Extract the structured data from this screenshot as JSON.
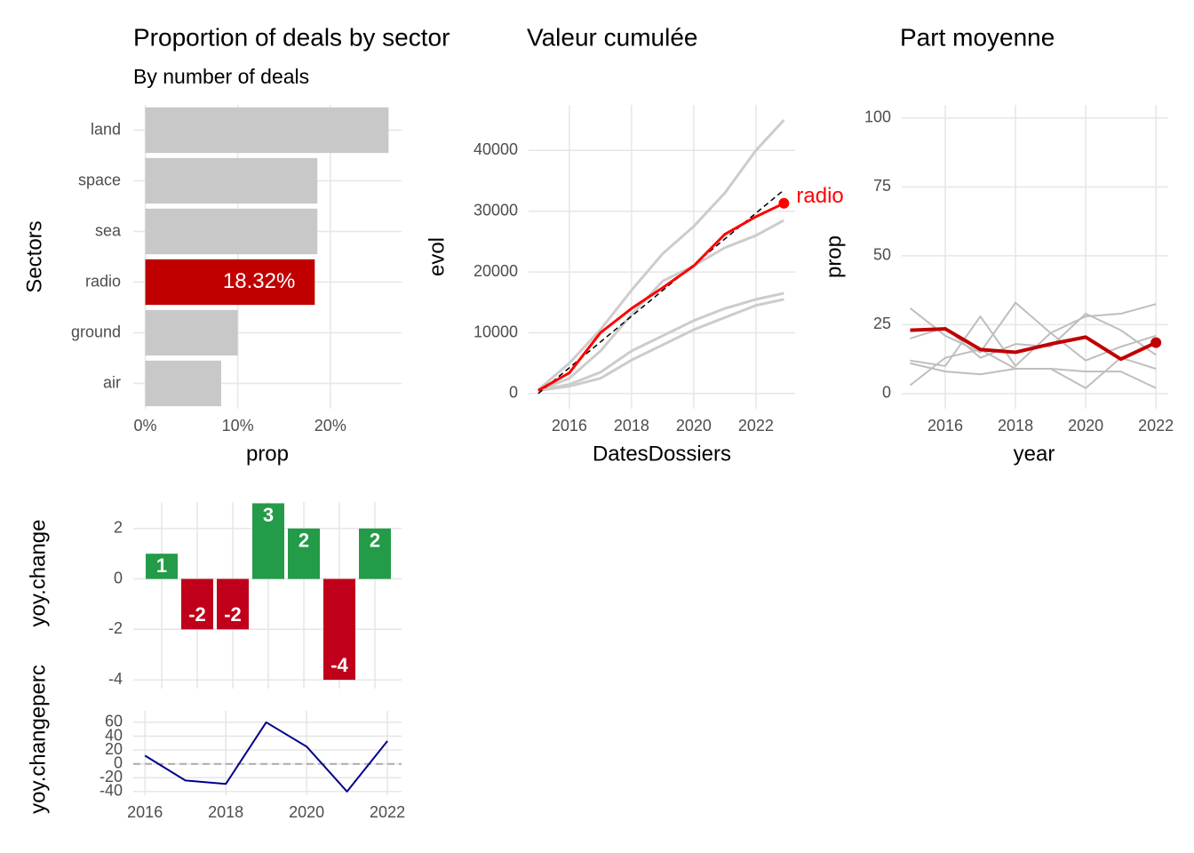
{
  "chart_data": [
    {
      "type": "hbar",
      "title": "Proportion of deals by sector",
      "subtitle": "By number of deals",
      "xlabel": "prop",
      "ylabel": "Sectors",
      "categories": [
        "land",
        "space",
        "sea",
        "radio",
        "ground",
        "air"
      ],
      "values": [
        26.3,
        18.6,
        18.6,
        18.32,
        10.0,
        8.2
      ],
      "value_labels": [
        null,
        null,
        null,
        "18.32%",
        null,
        null
      ],
      "colors": [
        "#c8c8c8",
        "#c8c8c8",
        "#c8c8c8",
        "#c00000",
        "#c8c8c8",
        "#c8c8c8"
      ],
      "xlim": [
        -1.3,
        27.7
      ],
      "xticks": [
        {
          "value": 0,
          "label": "0%"
        },
        {
          "value": 10,
          "label": "10%"
        },
        {
          "value": 20,
          "label": "20%"
        }
      ],
      "grid": true
    },
    {
      "type": "line",
      "title": "Valeur cumulée",
      "xlabel": "DatesDossiers",
      "ylabel": "evol",
      "x": [
        2015,
        2016,
        2017,
        2018,
        2019,
        2020,
        2021,
        2022,
        2022.9
      ],
      "series": [
        {
          "color": "#cccccc",
          "width": 3,
          "values": [
            600,
            5000,
            10500,
            17000,
            23000,
            27500,
            33000,
            40000,
            45000
          ]
        },
        {
          "color": "#cccccc",
          "width": 3,
          "values": [
            500,
            2500,
            7000,
            13000,
            18500,
            21000,
            24000,
            26000,
            28500
          ]
        },
        {
          "color": "#cccccc",
          "width": 3,
          "values": [
            500,
            1500,
            3500,
            7000,
            9500,
            12000,
            14000,
            15500,
            16500
          ]
        },
        {
          "color": "#cccccc",
          "width": 3,
          "values": [
            500,
            1200,
            2500,
            5500,
            8000,
            10500,
            12500,
            14500,
            15500
          ]
        },
        {
          "color": "#000000",
          "width": 1.5,
          "dashed": true,
          "values": [
            0,
            4240,
            8480,
            12720,
            16960,
            21200,
            25440,
            29680,
            33500
          ]
        },
        {
          "name": "radio",
          "color": "#ff0000",
          "width": 3,
          "end_marker": true,
          "end_label": true,
          "values": [
            500,
            3400,
            10000,
            14000,
            17400,
            21000,
            26200,
            29100,
            31300
          ]
        }
      ],
      "xlim": [
        2014.69,
        2023.26
      ],
      "ylim": [
        -2500,
        47500
      ],
      "xticks": [
        2016,
        2018,
        2020,
        2022
      ],
      "yticks": [
        0,
        10000,
        20000,
        30000,
        40000
      ],
      "grid": true
    },
    {
      "type": "line",
      "title": "Part moyenne",
      "xlabel": "year",
      "ylabel": "prop",
      "x": [
        2015,
        2016,
        2017,
        2018,
        2019,
        2020,
        2021,
        2022
      ],
      "series": [
        {
          "color": "#bebebe",
          "width": 2,
          "values": [
            31,
            21,
            15,
            33,
            22,
            28,
            29,
            32.5
          ]
        },
        {
          "color": "#bebebe",
          "width": 2,
          "values": [
            20,
            24,
            13,
            18,
            17,
            29,
            23,
            14
          ]
        },
        {
          "color": "#bebebe",
          "width": 2,
          "values": [
            12,
            10,
            28,
            10,
            22,
            12,
            17,
            21
          ]
        },
        {
          "color": "#bebebe",
          "width": 2,
          "values": [
            11,
            8,
            7,
            9,
            9,
            2,
            13,
            9
          ]
        },
        {
          "color": "#bebebe",
          "width": 2,
          "values": [
            3,
            13,
            16,
            9,
            9,
            8,
            8,
            2
          ]
        },
        {
          "color": "#c00000",
          "width": 4,
          "end_marker": true,
          "values": [
            23,
            23.5,
            16,
            15,
            18,
            20.5,
            12.5,
            18.5
          ]
        }
      ],
      "xlim": [
        2014.76,
        2022.35
      ],
      "ylim": [
        -5.5,
        104.8
      ],
      "xticks": [
        2016,
        2018,
        2020,
        2022
      ],
      "yticks": [
        0,
        25,
        50,
        75,
        100
      ],
      "grid": true
    },
    {
      "type": "bar",
      "ylabel": "yoy.change",
      "x": [
        2016,
        2017,
        2018,
        2019,
        2020,
        2021,
        2022
      ],
      "values": [
        1,
        -2,
        -2,
        3,
        2,
        -4,
        2
      ],
      "colors": [
        "#239b48",
        "#c0001a",
        "#c0001a",
        "#239b48",
        "#239b48",
        "#c0001a",
        "#239b48"
      ],
      "xlim": [
        2015.2,
        2022.75
      ],
      "ylim": [
        -4.35,
        3.05
      ],
      "yticks": [
        -4,
        -2,
        0,
        2
      ],
      "grid": true
    },
    {
      "type": "line",
      "ylabel": "yoy.changeperc",
      "x": [
        2016,
        2017,
        2018,
        2019,
        2020,
        2021,
        2022
      ],
      "series": [
        {
          "color": "#00008b",
          "width": 2,
          "values": [
            12,
            -24,
            -29,
            60,
            25,
            -40,
            33
          ]
        }
      ],
      "hline": 0,
      "xlim": [
        2015.71,
        2022.35
      ],
      "ylim": [
        -45.3,
        76.6
      ],
      "xticks": [
        2016,
        2018,
        2020,
        2022
      ],
      "yticks": [
        -40,
        -20,
        0,
        20,
        40,
        60
      ],
      "grid": true
    }
  ]
}
